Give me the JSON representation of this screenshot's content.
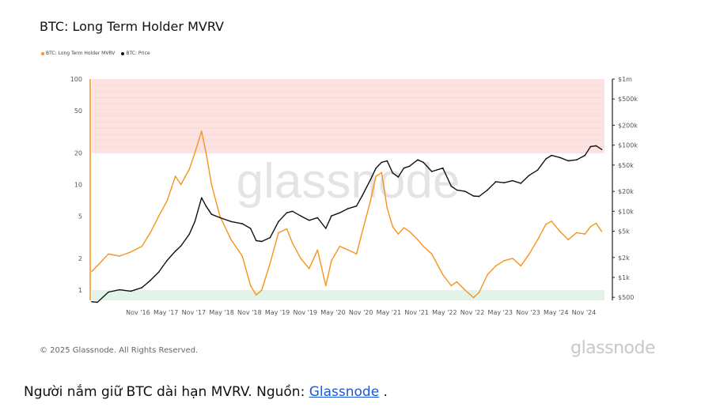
{
  "header": {
    "title": "BTC: Long Term Holder MVRV"
  },
  "legend": [
    {
      "label": "BTC: Long Term Holder MVRV",
      "color": "#f7931a"
    },
    {
      "label": "BTC: Price",
      "color": "#111111"
    }
  ],
  "watermark": "glassnode",
  "footer": {
    "copyright": "© 2025 Glassnode. All Rights Reserved.",
    "logo": "glassnode"
  },
  "caption": {
    "text": "Người nắm giữ BTC dài hạn MVRV. Nguồn: ",
    "link": "Glassnode",
    "after": " ."
  },
  "chart_data": {
    "type": "line",
    "title": "BTC: Long Term Holder MVRV",
    "x_tick_labels": [
      "Nov '16",
      "May '17",
      "Nov '17",
      "May '18",
      "Nov '18",
      "May '19",
      "Nov '19",
      "May '20",
      "Nov '20",
      "May '21",
      "Nov '21",
      "May '22",
      "Nov '22",
      "May '23",
      "Nov '23",
      "May '24",
      "Nov '24"
    ],
    "x_range_years": [
      2016.0,
      2025.2
    ],
    "y_left": {
      "scale": "log",
      "ticks": [
        1,
        2,
        5,
        10,
        20,
        50,
        100
      ],
      "labels": [
        "1",
        "2",
        "5",
        "10",
        "20",
        "50",
        "100"
      ],
      "ylim": [
        0.8,
        100
      ]
    },
    "y_right": {
      "scale": "log",
      "ticks": [
        500,
        1000,
        2000,
        5000,
        10000,
        20000,
        50000,
        100000,
        200000,
        500000,
        1000000
      ],
      "labels": [
        "$500",
        "$1k",
        "$2k",
        "$5k",
        "$10k",
        "$20k",
        "$50k",
        "$100k",
        "$200k",
        "$500k",
        "$1m"
      ],
      "ylim": [
        450,
        1000000
      ]
    },
    "bands": [
      {
        "name": "high",
        "from": 20,
        "to": 100,
        "color": "#fde2e2"
      },
      {
        "name": "low",
        "from": 0.8,
        "to": 1,
        "color": "#e2f3ea"
      }
    ],
    "series": [
      {
        "name": "BTC: Long Term Holder MVRV",
        "axis": "left",
        "color": "#f7931a",
        "x": [
          2016.0,
          2016.1,
          2016.3,
          2016.5,
          2016.7,
          2016.9,
          2017.05,
          2017.2,
          2017.35,
          2017.5,
          2017.6,
          2017.75,
          2017.85,
          2017.97,
          2018.05,
          2018.15,
          2018.3,
          2018.5,
          2018.7,
          2018.85,
          2018.95,
          2019.05,
          2019.2,
          2019.35,
          2019.5,
          2019.6,
          2019.75,
          2019.9,
          2020.05,
          2020.2,
          2020.3,
          2020.45,
          2020.6,
          2020.75,
          2020.85,
          2021.0,
          2021.1,
          2021.2,
          2021.3,
          2021.4,
          2021.5,
          2021.6,
          2021.7,
          2021.85,
          2021.95,
          2022.1,
          2022.3,
          2022.45,
          2022.55,
          2022.7,
          2022.85,
          2022.95,
          2023.1,
          2023.25,
          2023.4,
          2023.55,
          2023.7,
          2023.85,
          2024.0,
          2024.15,
          2024.25,
          2024.4,
          2024.55,
          2024.7,
          2024.85,
          2024.95,
          2025.05,
          2025.15
        ],
        "values": [
          1.5,
          1.7,
          2.2,
          2.1,
          2.3,
          2.6,
          3.5,
          5,
          7,
          12,
          10,
          14,
          20,
          32,
          20,
          10,
          5,
          3,
          2.1,
          1.1,
          0.9,
          1.0,
          1.8,
          3.5,
          3.8,
          2.8,
          2.0,
          1.6,
          2.4,
          1.1,
          1.9,
          2.6,
          2.4,
          2.2,
          3.5,
          7,
          12,
          13,
          6,
          4,
          3.4,
          3.9,
          3.6,
          3.0,
          2.6,
          2.2,
          1.4,
          1.1,
          1.2,
          1.0,
          0.85,
          0.95,
          1.4,
          1.7,
          1.9,
          2.0,
          1.7,
          2.2,
          3.0,
          4.2,
          4.5,
          3.6,
          3.0,
          3.5,
          3.4,
          4.0,
          4.3,
          3.6
        ]
      },
      {
        "name": "BTC: Price",
        "axis": "right",
        "color": "#111111",
        "x": [
          2016.0,
          2016.1,
          2016.3,
          2016.5,
          2016.7,
          2016.9,
          2017.05,
          2017.2,
          2017.35,
          2017.5,
          2017.6,
          2017.75,
          2017.85,
          2017.97,
          2018.05,
          2018.15,
          2018.3,
          2018.5,
          2018.7,
          2018.85,
          2018.95,
          2019.05,
          2019.2,
          2019.35,
          2019.5,
          2019.6,
          2019.75,
          2019.9,
          2020.05,
          2020.2,
          2020.3,
          2020.45,
          2020.6,
          2020.75,
          2020.85,
          2021.0,
          2021.1,
          2021.2,
          2021.3,
          2021.4,
          2021.5,
          2021.6,
          2021.7,
          2021.85,
          2021.95,
          2022.1,
          2022.3,
          2022.45,
          2022.55,
          2022.7,
          2022.85,
          2022.95,
          2023.1,
          2023.25,
          2023.4,
          2023.55,
          2023.7,
          2023.85,
          2024.0,
          2024.15,
          2024.25,
          2024.4,
          2024.55,
          2024.7,
          2024.85,
          2024.95,
          2025.05,
          2025.15
        ],
        "values": [
          430,
          420,
          600,
          650,
          620,
          700,
          900,
          1200,
          1800,
          2500,
          3000,
          4500,
          7000,
          16000,
          12000,
          9000,
          8000,
          7000,
          6500,
          5500,
          3600,
          3500,
          4000,
          7000,
          9500,
          10000,
          8500,
          7300,
          8000,
          5500,
          8500,
          9500,
          11000,
          12000,
          17000,
          30000,
          45000,
          55000,
          58000,
          38000,
          33000,
          45000,
          48000,
          60000,
          55000,
          40000,
          45000,
          24000,
          21000,
          20000,
          17000,
          16800,
          21000,
          28000,
          27000,
          29000,
          26500,
          35000,
          42000,
          62000,
          70000,
          65000,
          58000,
          60000,
          70000,
          95000,
          98000,
          86000
        ]
      }
    ]
  }
}
